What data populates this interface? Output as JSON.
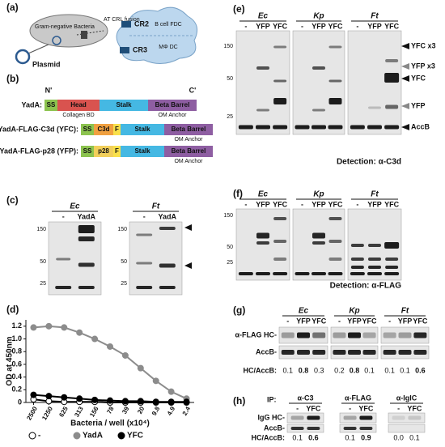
{
  "panel_labels": [
    "(a)",
    "(b)",
    "(c)",
    "(d)",
    "(e)",
    "(f)",
    "(g)",
    "(h)"
  ],
  "a": {
    "bacteria": "Gram-negative Bacteria",
    "fusion": "AT CRL fusion",
    "plasmid": "Plasmid",
    "receptors": [
      "CR2",
      "CR3"
    ],
    "cells": [
      "B cell FDC",
      "MΦ DC"
    ]
  },
  "b": {
    "n_term": "N'",
    "c_term": "C'",
    "constructs": [
      {
        "name": "YadA:",
        "domains": [
          "SS",
          "Head",
          "Stalk",
          "Beta Barrel"
        ],
        "notes": [
          "Collagen BD",
          "OM Anchor"
        ]
      },
      {
        "name": "YadA-FLAG-C3d (YFC):",
        "domains": [
          "SS",
          "C3d",
          "F",
          "Stalk",
          "Beta Barrel"
        ],
        "notes": [
          "OM Anchor"
        ]
      },
      {
        "name": "YadA-FLAG-p28 (YFP):",
        "domains": [
          "SS",
          "p28",
          "F",
          "Stalk",
          "Beta Barrel"
        ],
        "notes": [
          "OM Anchor"
        ]
      }
    ]
  },
  "c": {
    "blots": [
      {
        "species": "Ec",
        "lanes": [
          "-",
          "YadA"
        ],
        "markers": [
          "150",
          "50",
          "25"
        ]
      },
      {
        "species": "Ft",
        "lanes": [
          "-",
          "YadA"
        ],
        "markers": [
          "150",
          "50",
          "25"
        ]
      }
    ]
  },
  "chart_data": {
    "type": "line",
    "y_label": "OD at 450nm",
    "x_label": "Bacteria / well (x10⁴)",
    "categories": [
      "2500",
      "1250",
      "625",
      "313",
      "156",
      "78",
      "39",
      "20",
      "9.8",
      "4.9",
      "2.4"
    ],
    "series": [
      {
        "name": "-",
        "color": "#ffffff",
        "values": [
          0.05,
          0.02,
          0.01,
          0.01,
          0.01,
          0,
          0,
          0,
          0,
          0,
          0
        ]
      },
      {
        "name": "YadA",
        "color": "#8c8c8c",
        "values": [
          1.18,
          1.2,
          1.18,
          1.1,
          1.0,
          0.88,
          0.74,
          0.54,
          0.34,
          0.17,
          0.06
        ]
      },
      {
        "name": "YFC",
        "color": "#000000",
        "values": [
          0.12,
          0.1,
          0.08,
          0.06,
          0.04,
          0.03,
          0.02,
          0.02,
          0.01,
          0.01,
          0.01
        ]
      }
    ],
    "marker_edge": "#000000",
    "ylim": [
      0,
      1.3
    ],
    "yticks": [
      0,
      {
        "value": 0.2,
        "label": "0.2"
      },
      {
        "value": 0.4,
        "label": "0.4"
      },
      {
        "value": 0.6,
        "label": "0.6"
      },
      {
        "value": 0.8,
        "label": "0.8"
      },
      {
        "value": 1.0,
        "label": "1.0"
      },
      {
        "value": 1.2,
        "label": "1.2"
      }
    ]
  },
  "e": {
    "groups": [
      {
        "species": "Ec",
        "lanes": [
          "-",
          "YFP",
          "YFC"
        ]
      },
      {
        "species": "Kp",
        "lanes": [
          "-",
          "YFP",
          "YFC"
        ]
      },
      {
        "species": "Ft",
        "lanes": [
          "-",
          "YFP",
          "YFC"
        ]
      }
    ],
    "markers": [
      "150",
      "50",
      "25"
    ],
    "band_labels": [
      "YFC x3",
      "YFP x3",
      "YFC",
      "YFP",
      "AccB"
    ],
    "detection": "Detection: α-C3d"
  },
  "f": {
    "groups": [
      {
        "species": "Ec",
        "lanes": [
          "-",
          "YFP",
          "YFC"
        ]
      },
      {
        "species": "Kp",
        "lanes": [
          "-",
          "YFP",
          "YFC"
        ]
      },
      {
        "species": "Ft",
        "lanes": [
          "-",
          "YFP",
          "YFC"
        ]
      }
    ],
    "markers": [
      "150",
      "50",
      "25"
    ],
    "detection": "Detection: α-FLAG"
  },
  "g": {
    "groups": [
      {
        "species": "Ec",
        "lanes": [
          "-",
          "YFP",
          "YFC"
        ],
        "ratios": [
          "0.1",
          "0.8",
          "0.3"
        ]
      },
      {
        "species": "Kp",
        "lanes": [
          "-",
          "YFP",
          "YFC"
        ],
        "ratios": [
          "0.2",
          "0.8",
          "0.1"
        ]
      },
      {
        "species": "Ft",
        "lanes": [
          "-",
          "YFP",
          "YFC"
        ],
        "ratios": [
          "0.1",
          "0.1",
          "0.6"
        ]
      }
    ],
    "rows": [
      "α-FLAG HC-",
      "AccB-"
    ],
    "ratio_label": "HC/AccB:"
  },
  "h": {
    "ip_label": "IP:",
    "groups": [
      {
        "antibody": "α-C3",
        "lanes": [
          "-",
          "YFC"
        ],
        "ratios": [
          "0.1",
          "0.6"
        ]
      },
      {
        "antibody": "α-FLAG",
        "lanes": [
          "-",
          "YFC"
        ],
        "ratios": [
          "0.1",
          "0.9"
        ]
      },
      {
        "antibody": "α-IglC",
        "lanes": [
          "-",
          "YFC"
        ],
        "ratios": [
          "0.0",
          "0.1"
        ]
      }
    ],
    "rows": [
      "IgG HC-",
      "AccB-"
    ],
    "ratio_label": "HC/AccB:"
  }
}
